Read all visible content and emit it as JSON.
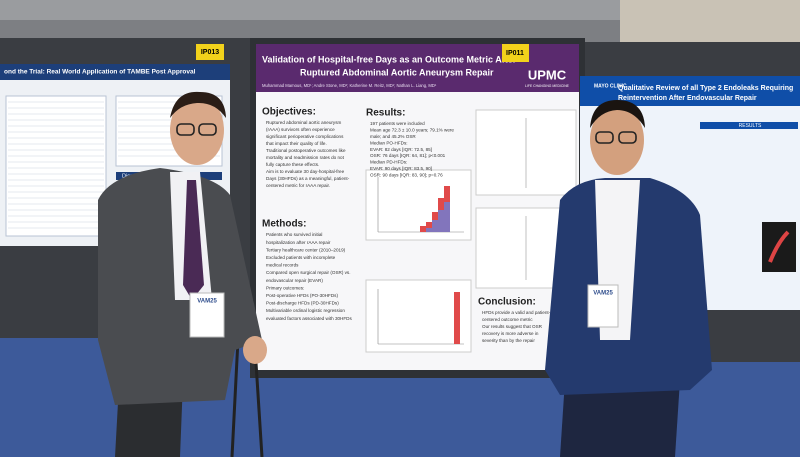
{
  "left_poster": {
    "code": "IP013",
    "title": "ond the Trial: Real World Application of TAMBE Post Approval",
    "section": "Discussion"
  },
  "center_poster": {
    "code": "IP011",
    "title_lines": [
      "Validation of Hospital-free Days as an Outcome Metric After",
      "Ruptured Abdominal Aortic Aneurysm Repair"
    ],
    "authors": "Muhammad Mamous, MD¹; Andre Stone, MD²; Katherine M. Reitz, MD¹; Nathan L. Liang, MD¹",
    "logo": "UPMC",
    "logo_sub": "LIFE CHANGING MEDICINE",
    "objectives": {
      "heading": "Objectives:",
      "lines": [
        "Ruptured abdominal aortic aneurysm",
        "(rAAA) survivors often experience",
        "significant perioperative complications",
        "that impact their quality of life.",
        "Traditional postoperative outcomes like",
        "mortality and readmission rates do not",
        "fully capture these effects.",
        "Aim is to evaluate 30 day-hospital-free",
        "Days (30HFDs) as a meaningful, patient-",
        "centered metric for rAAA repair."
      ]
    },
    "methods": {
      "heading": "Methods:",
      "lines": [
        "Patients who survived initial",
        "hospitalization after rAAA repair",
        "Tertiary healthcare center (2010–2019)",
        "Excluded patients with incomplete",
        "medical records",
        "Compared open surgical repair (OSR) vs.",
        "endovascular repair (EVAR)",
        "Primary outcomes:",
        "Post-operative HFDs (PO-30HFDs)",
        "Post-discharge HFDs (PD-30HFDs)",
        "Multivariable ordinal logistic regression",
        "evaluated factors associated with 30HFDs"
      ]
    },
    "results": {
      "heading": "Results:",
      "lines": [
        "197 patients were included",
        "Mean age 72.3 ± 10.0 years; 79.1% were",
        "male; and 45.2% OSR",
        "Median PO-HFDs:",
        "EVAR: 82 days [IQR: 72.5, 85]",
        "OSR: 76 days [IQR: 64, 81]; p<0.001",
        "Median PD-HFDs:",
        "EVAR: 90 days [IQR: 83.5, 90]",
        "OSR: 90 days [IQR: 83, 90]; p=0.76"
      ]
    },
    "conclusion": {
      "heading": "Conclusion:",
      "lines": [
        "HFDs provide a valid and patient-",
        "centered outcome metric",
        "Our results suggest that OSR",
        "recovery is more adverse in",
        "severity than by the repair"
      ]
    }
  },
  "right_poster": {
    "logo": "MAYO CLINIC",
    "title_lines": [
      "Qualitative Review of all Type 2 Endoleaks Requiring",
      "Reintervention After Endovascular Repair"
    ],
    "section": "RESULTS"
  },
  "badges": [
    "VAM25",
    "VAM25"
  ]
}
